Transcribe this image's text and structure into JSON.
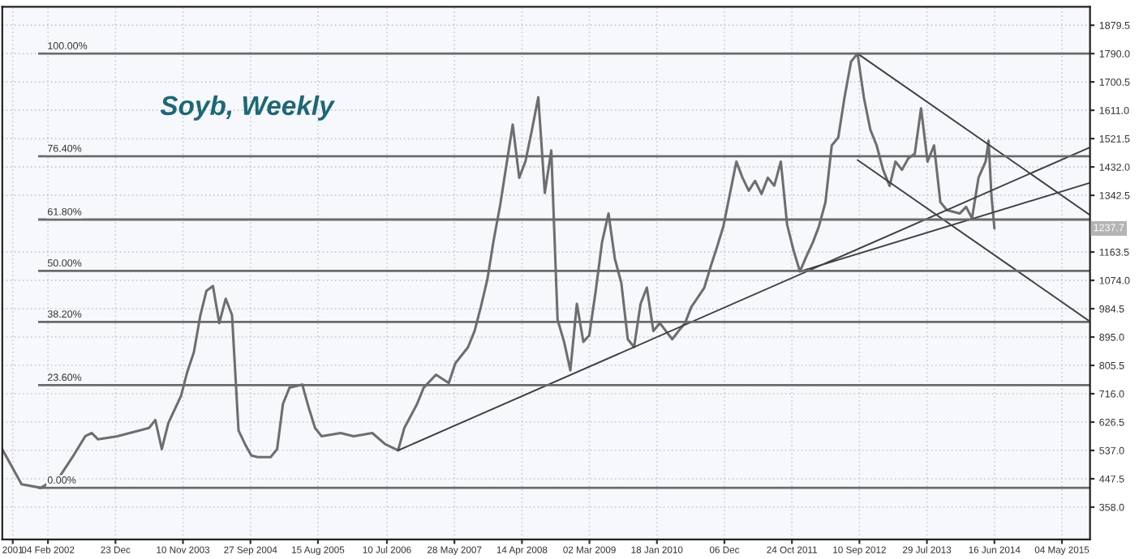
{
  "chart_data": {
    "type": "line",
    "title": "Soyb, Weekly",
    "x": [
      "2001-07",
      "2001-10",
      "2002-01",
      "2002-04",
      "2002-06",
      "2002-08",
      "2002-09",
      "2002-10",
      "2003-01",
      "2003-03",
      "2003-06",
      "2003-07",
      "2003-08",
      "2003-09",
      "2003-11",
      "2003-12",
      "2004-01",
      "2004-02",
      "2004-03",
      "2004-04",
      "2004-05",
      "2004-06",
      "2004-07",
      "2004-08",
      "2004-09",
      "2004-10",
      "2004-11",
      "2005-01",
      "2005-02",
      "2005-03",
      "2005-04",
      "2005-06",
      "2005-07",
      "2005-08",
      "2005-09",
      "2005-12",
      "2006-02",
      "2006-05",
      "2006-07",
      "2006-09",
      "2006-10",
      "2006-12",
      "2007-01",
      "2007-03",
      "2007-05",
      "2007-06",
      "2007-08",
      "2007-09",
      "2007-10",
      "2007-11",
      "2007-12",
      "2008-01",
      "2008-03",
      "2008-04",
      "2008-05",
      "2008-06",
      "2008-07",
      "2008-08",
      "2008-09",
      "2008-10",
      "2008-11",
      "2008-12",
      "2009-01",
      "2009-02",
      "2009-03",
      "2009-04",
      "2009-05",
      "2009-06",
      "2009-07",
      "2009-08",
      "2009-09",
      "2009-10",
      "2009-11",
      "2009-12",
      "2010-01",
      "2010-02",
      "2010-04",
      "2010-05",
      "2010-06",
      "2010-07",
      "2010-08",
      "2010-09",
      "2010-10",
      "2010-11",
      "2010-12",
      "2011-01",
      "2011-02",
      "2011-03",
      "2011-04",
      "2011-05",
      "2011-06",
      "2011-07",
      "2011-08",
      "2011-09",
      "2011-10",
      "2011-11",
      "2011-12",
      "2012-01",
      "2012-02",
      "2012-03",
      "2012-04",
      "2012-05",
      "2012-06",
      "2012-07",
      "2012-08",
      "2012-09",
      "2012-10",
      "2012-11",
      "2012-12",
      "2013-01",
      "2013-02",
      "2013-03",
      "2013-04",
      "2013-05",
      "2013-06",
      "2013-07",
      "2013-08",
      "2013-09",
      "2013-10",
      "2013-11",
      "2014-01",
      "2014-02",
      "2014-03",
      "2014-04",
      "2014-05-05",
      "2014-05-19",
      "2014-06-02",
      "2014-06-16"
    ],
    "series": [
      {
        "color": "#6e6e6e",
        "values": [
          541,
          430,
          419,
          455,
          516,
          582,
          592,
          572,
          582,
          592,
          608,
          633,
          541,
          623,
          710,
          786,
          847,
          964,
          1041,
          1056,
          939,
          1016,
          964,
          600,
          557,
          521,
          516,
          516,
          541,
          684,
          735,
          745,
          674,
          608,
          582,
          592,
          582,
          592,
          557,
          537,
          608,
          684,
          735,
          776,
          750,
          812,
          863,
          914,
          990,
          1077,
          1200,
          1311,
          1566,
          1398,
          1450,
          1550,
          1652,
          1350,
          1484,
          950,
          880,
          790,
          1000,
          880,
          900,
          1041,
          1194,
          1285,
          1143,
          1066,
          888,
          863,
          1000,
          1051,
          914,
          939,
          888,
          914,
          939,
          990,
          1020,
          1051,
          1117,
          1180,
          1245,
          1347,
          1449,
          1400,
          1357,
          1388,
          1347,
          1398,
          1373,
          1449,
          1250,
          1168,
          1102,
          1150,
          1194,
          1245,
          1321,
          1500,
          1525,
          1652,
          1765,
          1790,
          1652,
          1550,
          1500,
          1423,
          1372,
          1449,
          1423,
          1459,
          1474,
          1617,
          1449,
          1500,
          1321,
          1296,
          1285,
          1306,
          1270,
          1398,
          1449,
          1515,
          1340,
          1238
        ]
      },
      {
        "type": "line",
        "color": "#404040",
        "x": [
          "2006-09",
          "2015-09-15"
        ],
        "values": [
          537,
          1494
        ]
      },
      {
        "type": "line",
        "color": "#404040",
        "x": [
          "2011-12",
          "2015-09-15"
        ],
        "values": [
          1102,
          1382
        ]
      },
      {
        "type": "line",
        "color": "#404040",
        "x": [
          "2012-09",
          "2015-09-15"
        ],
        "values": [
          1790,
          1280
        ]
      },
      {
        "type": "line",
        "color": "#404040",
        "x": [
          "2012-09",
          "2015-09-15"
        ],
        "values": [
          1454,
          944
        ]
      }
    ],
    "ref_lines": [
      {
        "axis": "y",
        "value": 1790,
        "color": "#6a6a6a"
      },
      {
        "axis": "y",
        "value": 1466,
        "color": "#6a6a6a"
      },
      {
        "axis": "y",
        "value": 1266,
        "color": "#6a6a6a"
      },
      {
        "axis": "y",
        "value": 1104,
        "color": "#6a6a6a"
      },
      {
        "axis": "y",
        "value": 943,
        "color": "#6a6a6a"
      },
      {
        "axis": "y",
        "value": 743,
        "color": "#6a6a6a"
      },
      {
        "axis": "y",
        "value": 419,
        "color": "#6a6a6a"
      }
    ],
    "annotations": [
      {
        "text": "100.00%",
        "x": "2002-02-01",
        "y": 1790
      },
      {
        "text": "76.40%",
        "x": "2002-02-01",
        "y": 1466
      },
      {
        "text": "61.80%",
        "x": "2002-02-01",
        "y": 1266
      },
      {
        "text": "50.00%",
        "x": "2002-02-01",
        "y": 1104
      },
      {
        "text": "38.20%",
        "x": "2002-02-01",
        "y": 943
      },
      {
        "text": "23.60%",
        "x": "2002-02-01",
        "y": 743
      },
      {
        "text": "0.00%",
        "x": "2002-02-01",
        "y": 419
      },
      "1237.7"
    ],
    "xlim": [
      "2001-07-01",
      "2015-09-15"
    ],
    "xticks": [
      {
        "value": "2001-08-20",
        "label": "2001"
      },
      {
        "value": "2002-02-04",
        "label": "04 Feb 2002"
      },
      {
        "value": "2002-12-23",
        "label": "23 Dec"
      },
      {
        "value": "2003-11-10",
        "label": "10 Nov 2003"
      },
      {
        "value": "2004-09-27",
        "label": "27 Sep 2004"
      },
      {
        "value": "2005-08-15",
        "label": "15 Aug 2005"
      },
      {
        "value": "2006-07-10",
        "label": "10 Jul 2006"
      },
      {
        "value": "2007-05-28",
        "label": "28 May 2007"
      },
      {
        "value": "2008-04-14",
        "label": "14 Apr 2008"
      },
      {
        "value": "2009-03-02",
        "label": "02 Mar 2009"
      },
      {
        "value": "2010-01-18",
        "label": "18 Jan 2010"
      },
      {
        "value": "2010-12-06",
        "label": "06 Dec"
      },
      {
        "value": "2011-10-24",
        "label": "24 Oct 2011"
      },
      {
        "value": "2012-09-10",
        "label": "10 Sep 2012"
      },
      {
        "value": "2013-07-29",
        "label": "29 Jul 2013"
      },
      {
        "value": "2014-06-16",
        "label": "16 Jun 2014"
      },
      {
        "value": "2015-05-04",
        "label": "04 May 2015"
      }
    ],
    "ylim": [
      256,
      1938
    ],
    "yticks": [
      {
        "value": 358.0,
        "label": "358.0"
      },
      {
        "value": 447.5,
        "label": "447.5"
      },
      {
        "value": 537.0,
        "label": "537.0"
      },
      {
        "value": 626.5,
        "label": "626.5"
      },
      {
        "value": 716.0,
        "label": "716.0"
      },
      {
        "value": 805.5,
        "label": "805.5"
      },
      {
        "value": 895.0,
        "label": "895.0"
      },
      {
        "value": 984.5,
        "label": "984.5"
      },
      {
        "value": 1074.0,
        "label": "1074.0"
      },
      {
        "value": 1163.5,
        "label": "1163.5"
      },
      {
        "value": 1342.5,
        "label": "1342.5"
      },
      {
        "value": 1432.0,
        "label": "1432.0"
      },
      {
        "value": 1521.5,
        "label": "1521.5"
      },
      {
        "value": 1611.0,
        "label": "1611.0"
      },
      {
        "value": 1700.5,
        "label": "1700.5"
      },
      {
        "value": 1790.0,
        "label": "1790.0"
      },
      {
        "value": 1879.5,
        "label": "1879.5"
      }
    ],
    "grid": true,
    "legend": false,
    "marker": "none",
    "line_style": "solid"
  }
}
